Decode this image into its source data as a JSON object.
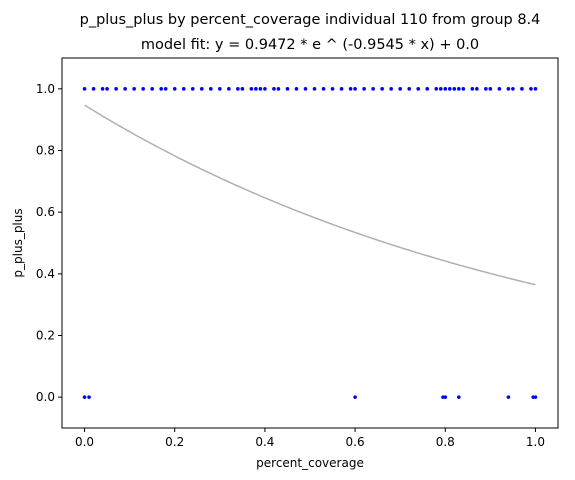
{
  "chart_data": {
    "type": "scatter",
    "title": "p_plus_plus by percent_coverage individual 110 from group 8.4",
    "subtitle": "model fit: y = 0.9472 * e ^ (-0.9545 * x) + 0.0",
    "xlabel": "percent_coverage",
    "ylabel": "p_plus_plus",
    "xlim": [
      -0.05,
      1.05
    ],
    "ylim": [
      -0.1,
      1.1
    ],
    "xticks": [
      "0.0",
      "0.2",
      "0.4",
      "0.6",
      "0.8",
      "1.0"
    ],
    "yticks": [
      "0.0",
      "0.2",
      "0.4",
      "0.6",
      "0.8",
      "1.0"
    ],
    "grid": false,
    "legend": "none",
    "points_color": "#0000ff",
    "fit_color": "#b0b0b0",
    "fit": {
      "a": 0.9472,
      "b": -0.9545,
      "c": 0.0
    },
    "series": [
      {
        "x": [
          0.0,
          0.02,
          0.04,
          0.05,
          0.07,
          0.09,
          0.11,
          0.13,
          0.15,
          0.17,
          0.18,
          0.2,
          0.22,
          0.24,
          0.26,
          0.28,
          0.3,
          0.32,
          0.34,
          0.35,
          0.37,
          0.38,
          0.39,
          0.4,
          0.42,
          0.43,
          0.45,
          0.47,
          0.49,
          0.51,
          0.53,
          0.55,
          0.57,
          0.59,
          0.6,
          0.62,
          0.64,
          0.66,
          0.68,
          0.7,
          0.72,
          0.74,
          0.76,
          0.78,
          0.79,
          0.8,
          0.81,
          0.82,
          0.83,
          0.84,
          0.86,
          0.87,
          0.89,
          0.9,
          0.92,
          0.94,
          0.95,
          0.97,
          0.99,
          1.0
        ],
        "y": [
          1,
          1,
          1,
          1,
          1,
          1,
          1,
          1,
          1,
          1,
          1,
          1,
          1,
          1,
          1,
          1,
          1,
          1,
          1,
          1,
          1,
          1,
          1,
          1,
          1,
          1,
          1,
          1,
          1,
          1,
          1,
          1,
          1,
          1,
          1,
          1,
          1,
          1,
          1,
          1,
          1,
          1,
          1,
          1,
          1,
          1,
          1,
          1,
          1,
          1,
          1,
          1,
          1,
          1,
          1,
          1,
          1,
          1,
          1,
          1
        ]
      },
      {
        "x": [
          0.0,
          0.01,
          0.6,
          0.795,
          0.8,
          0.83,
          0.94,
          0.995,
          1.0
        ],
        "y": [
          0,
          0,
          0,
          0,
          0,
          0,
          0,
          0,
          0
        ]
      }
    ]
  }
}
